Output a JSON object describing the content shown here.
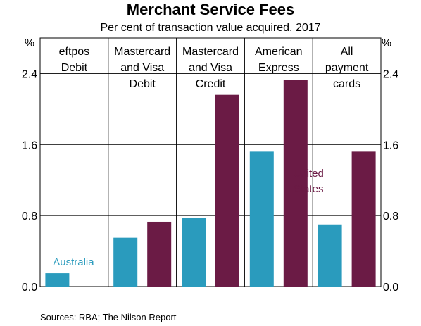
{
  "chart_data": {
    "type": "bar",
    "title": "Merchant Service Fees",
    "subtitle": "Per cent of transaction value acquired, 2017",
    "unit_left": "%",
    "unit_right": "%",
    "ylim": [
      0,
      2.8
    ],
    "yticks": [
      "0.0",
      "0.8",
      "1.6",
      "2.4"
    ],
    "grid": true,
    "categories": [
      [
        "eftpos",
        "Debit"
      ],
      [
        "Mastercard",
        "and Visa",
        "Debit"
      ],
      [
        "Mastercard",
        "and Visa",
        "Credit"
      ],
      [
        "American",
        "Express"
      ],
      [
        "All",
        "payment",
        "cards"
      ]
    ],
    "series": [
      {
        "name": "Australia",
        "color": "#2a9bbd",
        "values": [
          0.15,
          0.55,
          0.77,
          1.52,
          0.7
        ]
      },
      {
        "name": "United States",
        "color": "#6b1b45",
        "values": [
          null,
          0.73,
          2.16,
          2.33,
          1.52
        ]
      }
    ],
    "annotations": [
      {
        "text": "Australia",
        "color": "#2a9bbd"
      },
      {
        "lines": [
          "United",
          "States"
        ],
        "color": "#6b1b45"
      }
    ],
    "source": "Sources:   RBA; The Nilson Report"
  }
}
